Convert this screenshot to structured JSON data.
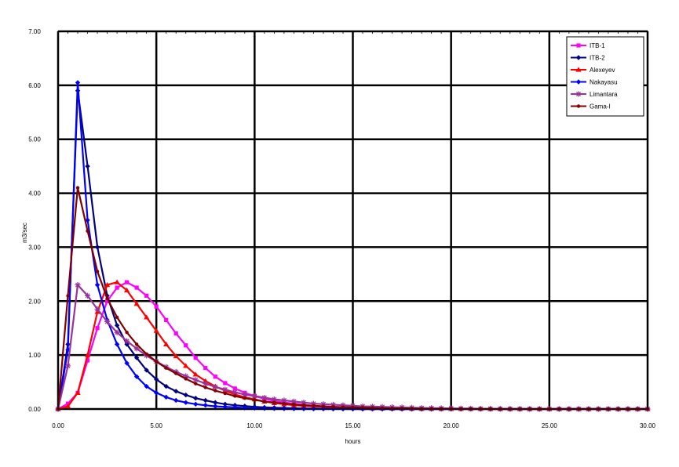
{
  "chart_data": {
    "type": "line",
    "title": "",
    "xlabel": "hours",
    "ylabel": "m3/sec",
    "xlim": [
      0,
      30
    ],
    "ylim": [
      0,
      7
    ],
    "xticks": [
      0,
      5,
      10,
      15,
      20,
      25,
      30
    ],
    "yticks": [
      0,
      1,
      2,
      3,
      4,
      5,
      6,
      7
    ],
    "xtick_labels": [
      "0.00",
      "5.00",
      "10.00",
      "15.00",
      "20.00",
      "25.00",
      "30.00"
    ],
    "ytick_labels": [
      "0.00",
      "1.00",
      "2.00",
      "3.00",
      "4.00",
      "5.00",
      "6.00",
      "7.00"
    ],
    "grid": true,
    "legend_position": "top-right",
    "series": [
      {
        "name": "ITB-1",
        "color": "#ff00ff",
        "marker": "square",
        "x": [
          0,
          0.5,
          1,
          1.5,
          2,
          2.5,
          3,
          3.5,
          4,
          4.5,
          5,
          5.5,
          6,
          6.5,
          7,
          7.5,
          8,
          8.5,
          9,
          9.5,
          10,
          10.5,
          11,
          11.5,
          12,
          12.5,
          13,
          13.5,
          14,
          14.5,
          15,
          15.5,
          16,
          16.5,
          17,
          17.5,
          18,
          18.5,
          19,
          19.5,
          20,
          20.5,
          21,
          21.5,
          22,
          22.5,
          23,
          23.5,
          24,
          24.5,
          25,
          25.5,
          26,
          26.5,
          27,
          27.5,
          28,
          28.5,
          29,
          29.5,
          30
        ],
        "y": [
          0,
          0.1,
          0.3,
          0.9,
          1.5,
          2.0,
          2.25,
          2.35,
          2.25,
          2.1,
          1.9,
          1.65,
          1.4,
          1.18,
          0.95,
          0.76,
          0.6,
          0.48,
          0.38,
          0.3,
          0.24,
          0.19,
          0.15,
          0.12,
          0.1,
          0.08,
          0.06,
          0.05,
          0.04,
          0.03,
          0.025,
          0.02,
          0.015,
          0.012,
          0.01,
          0.008,
          0.006,
          0.005,
          0.004,
          0.003,
          0.002,
          0.002,
          0.001,
          0.001,
          0.001,
          0.001,
          0,
          0,
          0,
          0,
          0,
          0,
          0,
          0,
          0,
          0,
          0,
          0,
          0,
          0,
          0
        ]
      },
      {
        "name": "ITB-2",
        "color": "#000080",
        "marker": "diamond",
        "x": [
          0,
          0.5,
          1,
          1.5,
          2,
          2.5,
          3,
          3.5,
          4,
          4.5,
          5,
          5.5,
          6,
          6.5,
          7,
          7.5,
          8,
          8.5,
          9,
          9.5,
          10,
          10.5,
          11,
          11.5,
          12,
          12.5,
          13,
          13.5,
          14,
          14.5,
          15,
          15.5,
          16,
          16.5,
          17,
          17.5,
          18,
          18.5,
          19,
          19.5,
          20,
          20.5,
          21,
          21.5,
          22,
          22.5,
          23,
          23.5,
          24,
          24.5,
          25,
          25.5,
          26,
          26.5,
          27,
          27.5,
          28,
          28.5,
          29,
          29.5,
          30
        ],
        "y": [
          0,
          1.2,
          5.9,
          4.5,
          3.0,
          2.1,
          1.55,
          1.2,
          0.95,
          0.72,
          0.55,
          0.42,
          0.33,
          0.26,
          0.2,
          0.16,
          0.12,
          0.09,
          0.07,
          0.055,
          0.04,
          0.03,
          0.025,
          0.02,
          0.015,
          0.01,
          0.008,
          0.006,
          0.005,
          0.004,
          0.003,
          0.002,
          0.002,
          0.001,
          0.001,
          0,
          0,
          0,
          0,
          0,
          0,
          0,
          0,
          0,
          0,
          0,
          0,
          0,
          0,
          0,
          0,
          0,
          0,
          0,
          0,
          0,
          0,
          0,
          0,
          0,
          0
        ]
      },
      {
        "name": "Alexeyev",
        "color": "#ff0000",
        "marker": "triangle",
        "x": [
          0,
          0.5,
          1,
          1.5,
          2,
          2.5,
          3,
          3.5,
          4,
          4.5,
          5,
          5.5,
          6,
          6.5,
          7,
          7.5,
          8,
          8.5,
          9,
          9.5,
          10,
          10.5,
          11,
          11.5,
          12,
          12.5,
          13,
          13.5,
          14,
          14.5,
          15,
          15.5,
          16,
          16.5,
          17,
          17.5,
          18,
          18.5,
          19,
          19.5,
          20,
          20.5,
          21,
          21.5,
          22,
          22.5,
          23,
          23.5,
          24,
          24.5,
          25,
          25.5,
          26,
          26.5,
          27,
          27.5,
          28,
          28.5,
          29,
          29.5,
          30
        ],
        "y": [
          0,
          0.05,
          0.3,
          1.0,
          1.8,
          2.3,
          2.35,
          2.2,
          1.95,
          1.7,
          1.45,
          1.2,
          0.98,
          0.8,
          0.64,
          0.52,
          0.42,
          0.34,
          0.27,
          0.22,
          0.18,
          0.14,
          0.11,
          0.09,
          0.07,
          0.06,
          0.05,
          0.04,
          0.03,
          0.025,
          0.02,
          0.015,
          0.012,
          0.01,
          0.008,
          0.006,
          0.005,
          0.004,
          0.003,
          0.002,
          0.002,
          0.001,
          0.001,
          0.001,
          0,
          0,
          0,
          0,
          0,
          0,
          0,
          0,
          0,
          0,
          0,
          0,
          0,
          0,
          0,
          0,
          0
        ]
      },
      {
        "name": "Nakayasu",
        "color": "#0000ff",
        "marker": "diamond",
        "x": [
          0,
          0.5,
          1,
          1.5,
          2,
          2.5,
          3,
          3.5,
          4,
          4.5,
          5,
          5.5,
          6,
          6.5,
          7,
          7.5,
          8,
          8.5,
          9,
          9.5,
          10,
          10.5,
          11,
          11.5,
          12,
          12.5,
          13,
          13.5,
          14,
          14.5,
          15,
          15.5,
          16,
          16.5,
          17,
          17.5,
          18,
          18.5,
          19,
          19.5,
          20,
          20.5,
          21,
          21.5,
          22,
          22.5,
          23,
          23.5,
          24,
          24.5,
          25,
          25.5,
          26,
          26.5,
          27,
          27.5,
          28,
          28.5,
          29,
          29.5,
          30
        ],
        "y": [
          0,
          1.1,
          6.05,
          3.5,
          2.3,
          1.65,
          1.2,
          0.85,
          0.6,
          0.42,
          0.3,
          0.22,
          0.16,
          0.12,
          0.09,
          0.07,
          0.05,
          0.04,
          0.03,
          0.02,
          0.015,
          0.01,
          0.008,
          0.006,
          0.004,
          0.003,
          0.002,
          0.002,
          0.001,
          0.001,
          0,
          0,
          0,
          0,
          0,
          0,
          0,
          0,
          0,
          0,
          0,
          0,
          0,
          0,
          0,
          0,
          0,
          0,
          0,
          0,
          0,
          0,
          0,
          0,
          0,
          0,
          0,
          0,
          0,
          0,
          0
        ]
      },
      {
        "name": "Limantara",
        "color": "#993399",
        "marker": "star",
        "x": [
          0,
          0.5,
          1,
          1.5,
          2,
          2.5,
          3,
          3.5,
          4,
          4.5,
          5,
          5.5,
          6,
          6.5,
          7,
          7.5,
          8,
          8.5,
          9,
          9.5,
          10,
          10.5,
          11,
          11.5,
          12,
          12.5,
          13,
          13.5,
          14,
          14.5,
          15,
          15.5,
          16,
          16.5,
          17,
          17.5,
          18,
          18.5,
          19,
          19.5,
          20,
          20.5,
          21,
          21.5,
          22,
          22.5,
          23,
          23.5,
          24,
          24.5,
          25,
          25.5,
          26,
          26.5,
          27,
          27.5,
          28,
          28.5,
          29,
          29.5,
          30
        ],
        "y": [
          0,
          0.8,
          2.3,
          2.1,
          1.85,
          1.62,
          1.42,
          1.26,
          1.12,
          0.99,
          0.88,
          0.78,
          0.69,
          0.61,
          0.54,
          0.47,
          0.41,
          0.36,
          0.31,
          0.27,
          0.24,
          0.21,
          0.18,
          0.16,
          0.14,
          0.12,
          0.1,
          0.09,
          0.08,
          0.07,
          0.06,
          0.05,
          0.045,
          0.04,
          0.035,
          0.03,
          0.025,
          0.02,
          0.018,
          0.015,
          0.012,
          0.01,
          0.008,
          0.006,
          0.005,
          0.004,
          0.003,
          0.002,
          0.002,
          0.001,
          0.001,
          0,
          0,
          0,
          0,
          0,
          0,
          0,
          0,
          0,
          0
        ]
      },
      {
        "name": "Gama-I",
        "color": "#800000",
        "marker": "circle",
        "x": [
          0,
          0.5,
          1,
          1.5,
          2,
          2.5,
          3,
          3.5,
          4,
          4.5,
          5,
          5.5,
          6,
          6.5,
          7,
          7.5,
          8,
          8.5,
          9,
          9.5,
          10,
          10.5,
          11,
          11.5,
          12,
          12.5,
          13,
          13.5,
          14,
          14.5,
          15,
          15.5,
          16,
          16.5,
          17,
          17.5,
          18,
          18.5,
          19,
          19.5,
          20,
          20.5,
          21,
          21.5,
          22,
          22.5,
          23,
          23.5,
          24,
          24.5,
          25,
          25.5,
          26,
          26.5,
          27,
          27.5,
          28,
          28.5,
          29,
          29.5,
          30
        ],
        "y": [
          0,
          2.1,
          4.1,
          3.3,
          2.55,
          2.05,
          1.7,
          1.42,
          1.2,
          1.02,
          0.88,
          0.76,
          0.66,
          0.56,
          0.47,
          0.4,
          0.34,
          0.29,
          0.24,
          0.2,
          0.17,
          0.14,
          0.12,
          0.1,
          0.085,
          0.07,
          0.06,
          0.05,
          0.04,
          0.035,
          0.03,
          0.025,
          0.02,
          0.015,
          0.012,
          0.01,
          0.008,
          0.006,
          0.005,
          0.004,
          0.003,
          0.002,
          0.002,
          0.001,
          0.001,
          0,
          0,
          0,
          0,
          0,
          0,
          0,
          0,
          0,
          0,
          0,
          0,
          0,
          0,
          0,
          0
        ]
      }
    ]
  }
}
